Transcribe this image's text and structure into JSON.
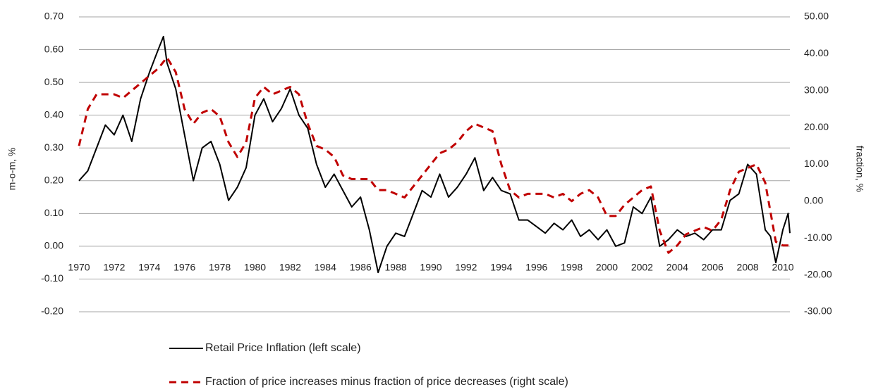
{
  "chart_data": {
    "type": "line",
    "y_label": "m-o-m, %",
    "y2_label": "fraction, %",
    "xlim": [
      1970,
      2010.4
    ],
    "xticks": [
      1970,
      1972,
      1974,
      1976,
      1978,
      1980,
      1982,
      1984,
      1986,
      1988,
      1990,
      1992,
      1994,
      1996,
      1998,
      2000,
      2002,
      2004,
      2006,
      2008,
      2010
    ],
    "ylim": [
      -0.2,
      0.7
    ],
    "yticks": [
      {
        "value": 0.7,
        "label": "0.70"
      },
      {
        "value": 0.6,
        "label": "0.60"
      },
      {
        "value": 0.5,
        "label": "0.50"
      },
      {
        "value": 0.4,
        "label": "0.40"
      },
      {
        "value": 0.3,
        "label": "0.30"
      },
      {
        "value": 0.2,
        "label": "0.20"
      },
      {
        "value": 0.1,
        "label": "0.10"
      },
      {
        "value": 0,
        "label": "0.00"
      },
      {
        "value": -0.1,
        "label": "-0.10"
      },
      {
        "value": -0.2,
        "label": "-0.20"
      }
    ],
    "y2lim": [
      -30,
      50
    ],
    "y2ticks": [
      {
        "value": 50,
        "label": "50.00"
      },
      {
        "value": 40,
        "label": "40.00"
      },
      {
        "value": 30,
        "label": "30.00"
      },
      {
        "value": 20,
        "label": "20.00"
      },
      {
        "value": 10,
        "label": "10.00"
      },
      {
        "value": 0,
        "label": "0.00"
      },
      {
        "value": -10,
        "label": "-10.00"
      },
      {
        "value": -20,
        "label": "-20.00"
      },
      {
        "value": -30,
        "label": "-30.00"
      }
    ],
    "grid": true,
    "legend": "bottom",
    "series": [
      {
        "name": "Retail Price Inflation (left scale)",
        "color": "#000000",
        "dash": false,
        "x": [
          1970,
          1970.5,
          1971,
          1971.5,
          1972,
          1972.5,
          1973,
          1973.5,
          1974,
          1974.5,
          1974.8,
          1975,
          1975.5,
          1976,
          1976.5,
          1977,
          1977.5,
          1978,
          1978.5,
          1979,
          1979.5,
          1980,
          1980.5,
          1981,
          1981.5,
          1982,
          1982.5,
          1983,
          1983.5,
          1984,
          1984.5,
          1985,
          1985.5,
          1986,
          1986.5,
          1987,
          1987.5,
          1988,
          1988.5,
          1989,
          1989.5,
          1990,
          1990.5,
          1991,
          1991.5,
          1992,
          1992.5,
          1993,
          1993.5,
          1994,
          1994.5,
          1995,
          1995.5,
          1996,
          1996.5,
          1997,
          1997.5,
          1998,
          1998.5,
          1999,
          1999.5,
          2000,
          2000.5,
          2001,
          2001.5,
          2002,
          2002.5,
          2003,
          2003.5,
          2004,
          2004.5,
          2005,
          2005.5,
          2006,
          2006.5,
          2007,
          2007.5,
          2008,
          2008.5,
          2009,
          2009.3,
          2009.6,
          2010,
          2010.3,
          2010.4
        ],
        "values": [
          0.2,
          0.23,
          0.3,
          0.37,
          0.34,
          0.4,
          0.32,
          0.45,
          0.53,
          0.6,
          0.64,
          0.56,
          0.48,
          0.34,
          0.2,
          0.3,
          0.32,
          0.25,
          0.14,
          0.18,
          0.24,
          0.4,
          0.45,
          0.38,
          0.42,
          0.48,
          0.4,
          0.36,
          0.25,
          0.18,
          0.22,
          0.17,
          0.12,
          0.15,
          0.05,
          -0.08,
          0.0,
          0.04,
          0.03,
          0.1,
          0.17,
          0.15,
          0.22,
          0.15,
          0.18,
          0.22,
          0.27,
          0.17,
          0.21,
          0.17,
          0.16,
          0.08,
          0.08,
          0.06,
          0.04,
          0.07,
          0.05,
          0.08,
          0.03,
          0.05,
          0.02,
          0.05,
          0.0,
          0.01,
          0.12,
          0.1,
          0.15,
          0.0,
          0.02,
          0.05,
          0.03,
          0.04,
          0.02,
          0.05,
          0.05,
          0.14,
          0.16,
          0.25,
          0.22,
          0.05,
          0.03,
          -0.05,
          0.05,
          0.1,
          0.04
        ]
      },
      {
        "name": "Fraction of price increases minus fraction of price decreases (right scale)",
        "color": "#c00000",
        "dash": true,
        "axis": "y2",
        "x": [
          1970,
          1970.5,
          1971,
          1971.5,
          1972,
          1972.5,
          1973,
          1973.5,
          1974,
          1974.5,
          1975,
          1975.5,
          1976,
          1976.5,
          1977,
          1977.5,
          1978,
          1978.5,
          1979,
          1979.5,
          1980,
          1980.5,
          1981,
          1981.5,
          1982,
          1982.5,
          1983,
          1983.5,
          1984,
          1984.5,
          1985,
          1985.5,
          1986,
          1986.5,
          1987,
          1987.5,
          1988,
          1988.5,
          1989,
          1989.5,
          1990,
          1990.5,
          1991,
          1991.5,
          1992,
          1992.5,
          1993,
          1993.5,
          1994,
          1994.5,
          1995,
          1995.5,
          1996,
          1996.5,
          1997,
          1997.5,
          1998,
          1998.5,
          1999,
          1999.5,
          2000,
          2000.5,
          2001,
          2001.5,
          2002,
          2002.5,
          2003,
          2003.5,
          2004,
          2004.5,
          2005,
          2005.5,
          2006,
          2006.5,
          2007,
          2007.5,
          2008,
          2008.5,
          2009,
          2009.3,
          2009.6,
          2010,
          2010.4
        ],
        "values": [
          15,
          25,
          29,
          29,
          29,
          28,
          30,
          32,
          34,
          36,
          39,
          35,
          25,
          21,
          24,
          25,
          23,
          16,
          12,
          16,
          28,
          31,
          29,
          30,
          31,
          29,
          21,
          15,
          14,
          12,
          7,
          6,
          6,
          6,
          3,
          3,
          2,
          1,
          4,
          7,
          10,
          13,
          14,
          16,
          19,
          21,
          20,
          19,
          10,
          3,
          1,
          2,
          2,
          2,
          1,
          2,
          0,
          2,
          3,
          1,
          -4,
          -4,
          -1,
          1,
          3,
          4,
          -8,
          -14,
          -12,
          -9,
          -8,
          -7,
          -8,
          -5,
          3,
          8,
          9,
          10,
          5,
          -3,
          -11,
          -12,
          -12
        ]
      }
    ]
  }
}
